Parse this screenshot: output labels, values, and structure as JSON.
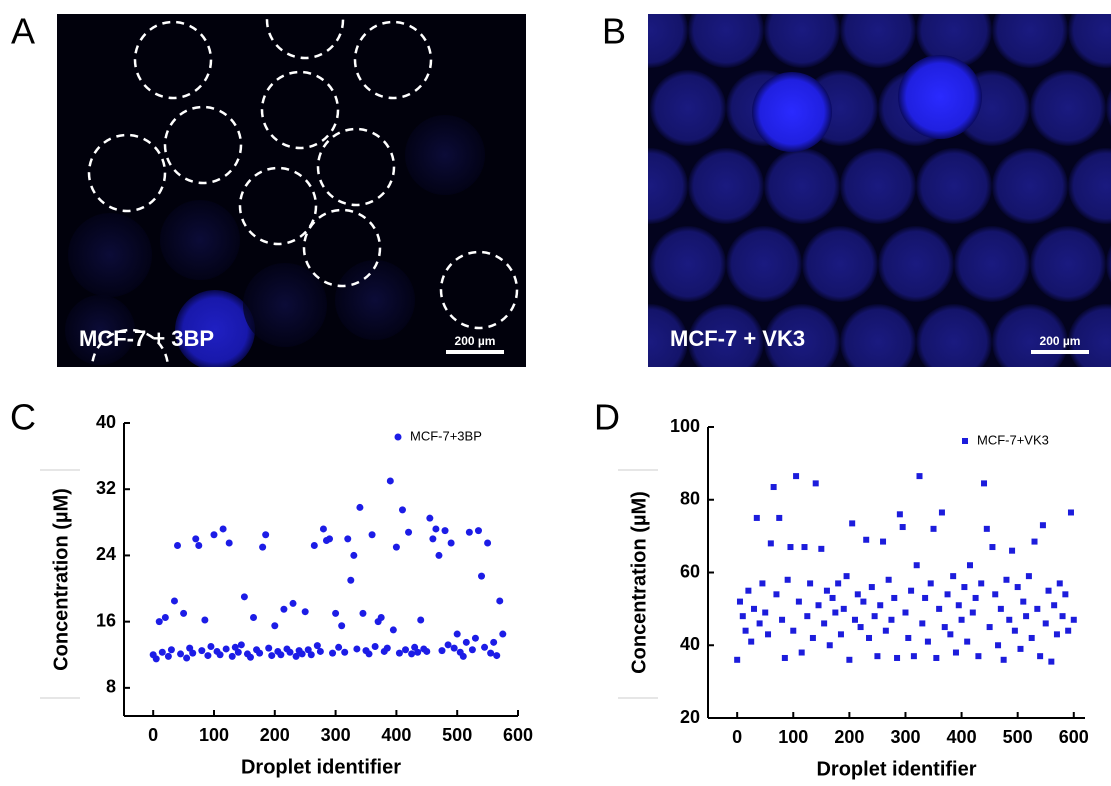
{
  "images": [
    {
      "panel": "A",
      "caption": "MCF-7 + 3BP",
      "scale_bar": "200 µm"
    },
    {
      "panel": "B",
      "caption": "MCF-7 + VK3",
      "scale_bar": "200 µm"
    }
  ],
  "chart_data": [
    {
      "type": "scatter",
      "panel": "C",
      "xlabel": "Droplet identifier",
      "ylabel": "Concentration (µM)",
      "xlim": [
        -48,
        600
      ],
      "ylim": [
        4.6,
        40
      ],
      "xticks": [
        0,
        100,
        200,
        300,
        400,
        500,
        600
      ],
      "yticks": [
        8,
        16,
        24,
        32,
        40
      ],
      "legend": "upper right",
      "x": [
        0,
        5,
        10,
        15,
        20,
        25,
        30,
        35,
        40,
        45,
        50,
        55,
        60,
        65,
        70,
        75,
        80,
        85,
        90,
        95,
        100,
        105,
        110,
        115,
        120,
        125,
        130,
        135,
        140,
        145,
        150,
        155,
        160,
        165,
        170,
        175,
        180,
        185,
        190,
        195,
        200,
        205,
        210,
        215,
        220,
        225,
        230,
        235,
        240,
        245,
        250,
        255,
        260,
        265,
        270,
        275,
        280,
        285,
        290,
        295,
        300,
        305,
        310,
        315,
        320,
        325,
        330,
        335,
        340,
        345,
        350,
        355,
        360,
        365,
        370,
        375,
        380,
        385,
        390,
        395,
        400,
        405,
        410,
        415,
        420,
        425,
        430,
        435,
        440,
        445,
        450,
        455,
        460,
        465,
        470,
        475,
        480,
        485,
        490,
        495,
        500,
        505,
        510,
        515,
        520,
        525,
        530,
        535,
        540,
        545,
        550,
        555,
        560,
        565,
        570,
        575
      ],
      "series": [
        {
          "name": "MCF-7+3BP",
          "color": "#1c1ce6",
          "marker": "circle",
          "values": [
            12.0,
            11.5,
            16.0,
            12.3,
            16.5,
            11.8,
            12.6,
            18.5,
            25.2,
            12.1,
            17.0,
            11.6,
            12.8,
            12.2,
            26.0,
            25.2,
            12.5,
            16.2,
            11.9,
            13.0,
            26.5,
            12.4,
            12.0,
            27.2,
            12.7,
            25.5,
            11.8,
            12.9,
            12.3,
            13.2,
            19.0,
            12.1,
            11.7,
            16.5,
            12.6,
            12.2,
            25.0,
            26.5,
            12.8,
            11.9,
            15.5,
            12.4,
            12.0,
            17.5,
            12.7,
            12.3,
            18.2,
            11.8,
            12.5,
            12.1,
            17.2,
            12.6,
            12.0,
            25.2,
            13.1,
            12.4,
            27.2,
            25.8,
            26.0,
            12.2,
            17.0,
            12.9,
            15.5,
            12.3,
            26.0,
            21.0,
            24.0,
            12.7,
            29.8,
            17.0,
            12.5,
            12.1,
            26.5,
            13.0,
            16.0,
            16.5,
            12.4,
            12.8,
            33.0,
            15.0,
            25.0,
            12.2,
            29.5,
            12.6,
            26.8,
            12.1,
            12.9,
            12.3,
            16.2,
            12.7,
            12.4,
            28.5,
            26.0,
            27.2,
            24.0,
            12.5,
            27.0,
            13.2,
            25.5,
            12.8,
            14.5,
            12.3,
            11.8,
            13.5,
            26.8,
            12.6,
            14.0,
            27.0,
            21.5,
            12.9,
            25.5,
            12.2,
            13.5,
            11.9,
            18.5,
            14.5
          ]
        }
      ]
    },
    {
      "type": "scatter",
      "panel": "D",
      "xlabel": "Droplet identifier",
      "ylabel": "Concentration (µM)",
      "xlim": [
        -52,
        620
      ],
      "ylim": [
        20,
        100
      ],
      "xticks": [
        0,
        100,
        200,
        300,
        400,
        500,
        600
      ],
      "yticks": [
        20,
        40,
        60,
        80,
        100
      ],
      "legend": "upper right",
      "x": [
        0,
        5,
        10,
        15,
        20,
        25,
        30,
        35,
        40,
        45,
        50,
        55,
        60,
        65,
        70,
        75,
        80,
        85,
        90,
        95,
        100,
        105,
        110,
        115,
        120,
        125,
        130,
        135,
        140,
        145,
        150,
        155,
        160,
        165,
        170,
        175,
        180,
        185,
        190,
        195,
        200,
        205,
        210,
        215,
        220,
        225,
        230,
        235,
        240,
        245,
        250,
        255,
        260,
        265,
        270,
        275,
        280,
        285,
        290,
        295,
        300,
        305,
        310,
        315,
        320,
        325,
        330,
        335,
        340,
        345,
        350,
        355,
        360,
        365,
        370,
        375,
        380,
        385,
        390,
        395,
        400,
        405,
        410,
        415,
        420,
        425,
        430,
        435,
        440,
        445,
        450,
        455,
        460,
        465,
        470,
        475,
        480,
        485,
        490,
        495,
        500,
        505,
        510,
        515,
        520,
        525,
        530,
        535,
        540,
        545,
        550,
        555,
        560,
        565,
        570,
        575,
        580,
        585,
        590,
        595,
        600
      ],
      "series": [
        {
          "name": "MCF-7+VK3",
          "color": "#1c1cdc",
          "marker": "square",
          "values": [
            36,
            52,
            48,
            44,
            55,
            41,
            50,
            75,
            46,
            57,
            49,
            43,
            68,
            83.5,
            54,
            75,
            47,
            36.5,
            58,
            67,
            44,
            86.5,
            52,
            38,
            67,
            48,
            57,
            42,
            84.5,
            51,
            66.5,
            46,
            55,
            40,
            53,
            49,
            57,
            43,
            50,
            59,
            36,
            73.5,
            47,
            54,
            45,
            52,
            69,
            42,
            56,
            48,
            37,
            51,
            68.5,
            44,
            58,
            47,
            53,
            36.5,
            76,
            72.5,
            49,
            42,
            55,
            37,
            62,
            86.5,
            46,
            53,
            41,
            57,
            72,
            36.5,
            50,
            76.5,
            45,
            54,
            43,
            59,
            38,
            51,
            47,
            56,
            41,
            62,
            49,
            53,
            37,
            57,
            84.5,
            72,
            45,
            67,
            54,
            40,
            50,
            36,
            58,
            47,
            66,
            44,
            56,
            39,
            52,
            48,
            59,
            42,
            68.5,
            50,
            37,
            73,
            46,
            55,
            35.5,
            51,
            43,
            57,
            48,
            54,
            44,
            76.5,
            47
          ]
        }
      ]
    }
  ]
}
